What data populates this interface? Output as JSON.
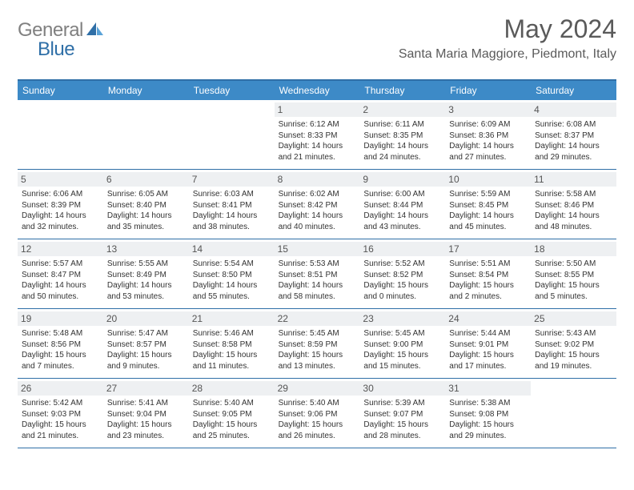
{
  "logo": {
    "gray": "General",
    "blue": "Blue"
  },
  "title": "May 2024",
  "location": "Santa Maria Maggiore, Piedmont, Italy",
  "colors": {
    "header_bar": "#3d8ac7",
    "border": "#2f6fa7",
    "daynum_bg": "#eef0f2",
    "text": "#333333",
    "title_text": "#5a5a5a"
  },
  "day_names": [
    "Sunday",
    "Monday",
    "Tuesday",
    "Wednesday",
    "Thursday",
    "Friday",
    "Saturday"
  ],
  "weeks": [
    [
      {
        "n": "",
        "sr": "",
        "ss": "",
        "dl": ""
      },
      {
        "n": "",
        "sr": "",
        "ss": "",
        "dl": ""
      },
      {
        "n": "",
        "sr": "",
        "ss": "",
        "dl": ""
      },
      {
        "n": "1",
        "sr": "Sunrise: 6:12 AM",
        "ss": "Sunset: 8:33 PM",
        "dl": "Daylight: 14 hours and 21 minutes."
      },
      {
        "n": "2",
        "sr": "Sunrise: 6:11 AM",
        "ss": "Sunset: 8:35 PM",
        "dl": "Daylight: 14 hours and 24 minutes."
      },
      {
        "n": "3",
        "sr": "Sunrise: 6:09 AM",
        "ss": "Sunset: 8:36 PM",
        "dl": "Daylight: 14 hours and 27 minutes."
      },
      {
        "n": "4",
        "sr": "Sunrise: 6:08 AM",
        "ss": "Sunset: 8:37 PM",
        "dl": "Daylight: 14 hours and 29 minutes."
      }
    ],
    [
      {
        "n": "5",
        "sr": "Sunrise: 6:06 AM",
        "ss": "Sunset: 8:39 PM",
        "dl": "Daylight: 14 hours and 32 minutes."
      },
      {
        "n": "6",
        "sr": "Sunrise: 6:05 AM",
        "ss": "Sunset: 8:40 PM",
        "dl": "Daylight: 14 hours and 35 minutes."
      },
      {
        "n": "7",
        "sr": "Sunrise: 6:03 AM",
        "ss": "Sunset: 8:41 PM",
        "dl": "Daylight: 14 hours and 38 minutes."
      },
      {
        "n": "8",
        "sr": "Sunrise: 6:02 AM",
        "ss": "Sunset: 8:42 PM",
        "dl": "Daylight: 14 hours and 40 minutes."
      },
      {
        "n": "9",
        "sr": "Sunrise: 6:00 AM",
        "ss": "Sunset: 8:44 PM",
        "dl": "Daylight: 14 hours and 43 minutes."
      },
      {
        "n": "10",
        "sr": "Sunrise: 5:59 AM",
        "ss": "Sunset: 8:45 PM",
        "dl": "Daylight: 14 hours and 45 minutes."
      },
      {
        "n": "11",
        "sr": "Sunrise: 5:58 AM",
        "ss": "Sunset: 8:46 PM",
        "dl": "Daylight: 14 hours and 48 minutes."
      }
    ],
    [
      {
        "n": "12",
        "sr": "Sunrise: 5:57 AM",
        "ss": "Sunset: 8:47 PM",
        "dl": "Daylight: 14 hours and 50 minutes."
      },
      {
        "n": "13",
        "sr": "Sunrise: 5:55 AM",
        "ss": "Sunset: 8:49 PM",
        "dl": "Daylight: 14 hours and 53 minutes."
      },
      {
        "n": "14",
        "sr": "Sunrise: 5:54 AM",
        "ss": "Sunset: 8:50 PM",
        "dl": "Daylight: 14 hours and 55 minutes."
      },
      {
        "n": "15",
        "sr": "Sunrise: 5:53 AM",
        "ss": "Sunset: 8:51 PM",
        "dl": "Daylight: 14 hours and 58 minutes."
      },
      {
        "n": "16",
        "sr": "Sunrise: 5:52 AM",
        "ss": "Sunset: 8:52 PM",
        "dl": "Daylight: 15 hours and 0 minutes."
      },
      {
        "n": "17",
        "sr": "Sunrise: 5:51 AM",
        "ss": "Sunset: 8:54 PM",
        "dl": "Daylight: 15 hours and 2 minutes."
      },
      {
        "n": "18",
        "sr": "Sunrise: 5:50 AM",
        "ss": "Sunset: 8:55 PM",
        "dl": "Daylight: 15 hours and 5 minutes."
      }
    ],
    [
      {
        "n": "19",
        "sr": "Sunrise: 5:48 AM",
        "ss": "Sunset: 8:56 PM",
        "dl": "Daylight: 15 hours and 7 minutes."
      },
      {
        "n": "20",
        "sr": "Sunrise: 5:47 AM",
        "ss": "Sunset: 8:57 PM",
        "dl": "Daylight: 15 hours and 9 minutes."
      },
      {
        "n": "21",
        "sr": "Sunrise: 5:46 AM",
        "ss": "Sunset: 8:58 PM",
        "dl": "Daylight: 15 hours and 11 minutes."
      },
      {
        "n": "22",
        "sr": "Sunrise: 5:45 AM",
        "ss": "Sunset: 8:59 PM",
        "dl": "Daylight: 15 hours and 13 minutes."
      },
      {
        "n": "23",
        "sr": "Sunrise: 5:45 AM",
        "ss": "Sunset: 9:00 PM",
        "dl": "Daylight: 15 hours and 15 minutes."
      },
      {
        "n": "24",
        "sr": "Sunrise: 5:44 AM",
        "ss": "Sunset: 9:01 PM",
        "dl": "Daylight: 15 hours and 17 minutes."
      },
      {
        "n": "25",
        "sr": "Sunrise: 5:43 AM",
        "ss": "Sunset: 9:02 PM",
        "dl": "Daylight: 15 hours and 19 minutes."
      }
    ],
    [
      {
        "n": "26",
        "sr": "Sunrise: 5:42 AM",
        "ss": "Sunset: 9:03 PM",
        "dl": "Daylight: 15 hours and 21 minutes."
      },
      {
        "n": "27",
        "sr": "Sunrise: 5:41 AM",
        "ss": "Sunset: 9:04 PM",
        "dl": "Daylight: 15 hours and 23 minutes."
      },
      {
        "n": "28",
        "sr": "Sunrise: 5:40 AM",
        "ss": "Sunset: 9:05 PM",
        "dl": "Daylight: 15 hours and 25 minutes."
      },
      {
        "n": "29",
        "sr": "Sunrise: 5:40 AM",
        "ss": "Sunset: 9:06 PM",
        "dl": "Daylight: 15 hours and 26 minutes."
      },
      {
        "n": "30",
        "sr": "Sunrise: 5:39 AM",
        "ss": "Sunset: 9:07 PM",
        "dl": "Daylight: 15 hours and 28 minutes."
      },
      {
        "n": "31",
        "sr": "Sunrise: 5:38 AM",
        "ss": "Sunset: 9:08 PM",
        "dl": "Daylight: 15 hours and 29 minutes."
      },
      {
        "n": "",
        "sr": "",
        "ss": "",
        "dl": ""
      }
    ]
  ]
}
